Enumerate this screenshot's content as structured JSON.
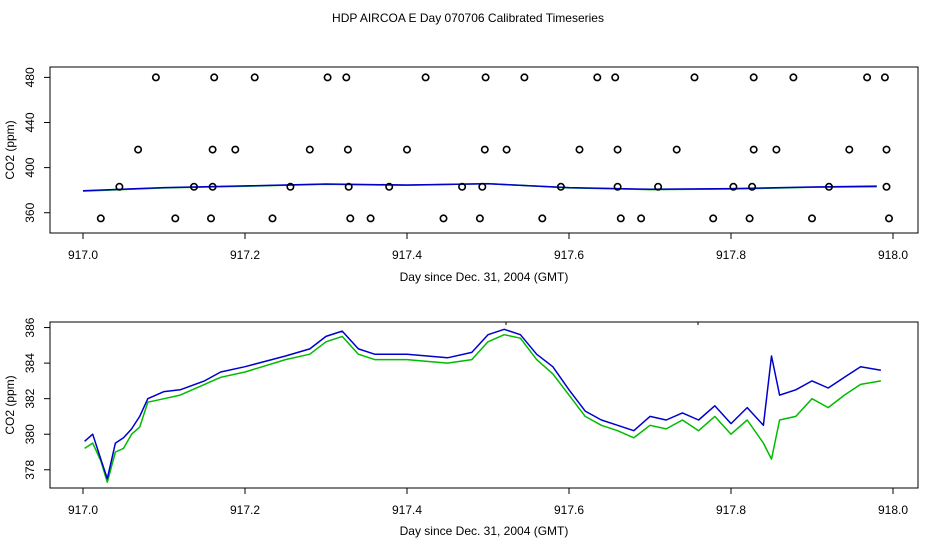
{
  "title": "HDP AIRCOA E  Day 070706  Calibrated Timeseries",
  "colors": {
    "green": "#00bb00",
    "blue": "#0000cc",
    "axis": "#000000",
    "points": "#000000"
  },
  "chart_data": [
    {
      "type": "scatter",
      "name": "top",
      "xlabel": "Day since Dec. 31, 2004 (GMT)",
      "ylabel": "CO2 (ppm)",
      "xlim": [
        917.0,
        918.0
      ],
      "ylim": [
        350,
        483
      ],
      "xticks": [
        917.0,
        917.2,
        917.4,
        917.6,
        917.8,
        918.0
      ],
      "xtick_labels": [
        "917.0",
        "917.2",
        "917.4",
        "917.6",
        "917.8",
        "918.0"
      ],
      "yticks": [
        360,
        400,
        440,
        480
      ],
      "ytick_labels": [
        "360",
        "400",
        "440",
        "480"
      ],
      "points": [
        [
          917.09,
          480
        ],
        [
          917.162,
          480
        ],
        [
          917.212,
          480
        ],
        [
          917.302,
          480
        ],
        [
          917.325,
          480
        ],
        [
          917.423,
          480
        ],
        [
          917.497,
          480
        ],
        [
          917.545,
          480
        ],
        [
          917.635,
          480
        ],
        [
          917.657,
          480
        ],
        [
          917.755,
          480
        ],
        [
          917.828,
          480
        ],
        [
          917.877,
          480
        ],
        [
          917.968,
          480
        ],
        [
          917.99,
          480
        ],
        [
          917.068,
          416
        ],
        [
          917.16,
          416
        ],
        [
          917.188,
          416
        ],
        [
          917.28,
          416
        ],
        [
          917.327,
          416
        ],
        [
          917.4,
          416
        ],
        [
          917.496,
          416
        ],
        [
          917.523,
          416
        ],
        [
          917.613,
          416
        ],
        [
          917.66,
          416
        ],
        [
          917.733,
          416
        ],
        [
          917.828,
          416
        ],
        [
          917.856,
          416
        ],
        [
          917.946,
          416
        ],
        [
          917.992,
          416
        ],
        [
          917.045,
          383
        ],
        [
          917.137,
          383
        ],
        [
          917.16,
          383
        ],
        [
          917.256,
          383
        ],
        [
          917.328,
          383
        ],
        [
          917.378,
          383
        ],
        [
          917.468,
          383
        ],
        [
          917.493,
          383
        ],
        [
          917.59,
          383
        ],
        [
          917.66,
          383
        ],
        [
          917.71,
          383
        ],
        [
          917.803,
          383
        ],
        [
          917.826,
          383
        ],
        [
          917.921,
          383
        ],
        [
          917.992,
          383
        ],
        [
          917.022,
          355
        ],
        [
          917.114,
          355
        ],
        [
          917.158,
          355
        ],
        [
          917.234,
          355
        ],
        [
          917.33,
          355
        ],
        [
          917.355,
          355
        ],
        [
          917.445,
          355
        ],
        [
          917.49,
          355
        ],
        [
          917.567,
          355
        ],
        [
          917.664,
          355
        ],
        [
          917.689,
          355
        ],
        [
          917.778,
          355
        ],
        [
          917.823,
          355
        ],
        [
          917.9,
          355
        ],
        [
          917.995,
          355
        ]
      ],
      "series": [
        {
          "color": "green",
          "x": [
            917.0,
            917.1,
            917.2,
            917.3,
            917.4,
            917.5,
            917.6,
            917.7,
            917.8,
            917.9,
            917.98
          ],
          "y": [
            379.2,
            382.0,
            383.5,
            385.2,
            384.3,
            385.8,
            382.0,
            380.5,
            381.0,
            382.5,
            383.0
          ]
        },
        {
          "color": "blue",
          "x": [
            917.0,
            917.1,
            917.2,
            917.3,
            917.4,
            917.5,
            917.6,
            917.7,
            917.8,
            917.9,
            917.98
          ],
          "y": [
            379.5,
            382.3,
            383.8,
            385.5,
            384.6,
            385.6,
            382.3,
            380.8,
            381.4,
            382.8,
            383.6
          ]
        }
      ]
    },
    {
      "type": "line",
      "name": "bottom",
      "xlabel": "Day since Dec. 31, 2004 (GMT)",
      "ylabel": "CO2 (ppm)",
      "xlim": [
        917.0,
        918.0
      ],
      "ylim": [
        377.2,
        386.2
      ],
      "xticks": [
        917.0,
        917.2,
        917.4,
        917.6,
        917.8,
        918.0
      ],
      "xtick_labels": [
        "917.0",
        "917.2",
        "917.4",
        "917.6",
        "917.8",
        "918.0"
      ],
      "yticks": [
        378,
        380,
        382,
        384,
        386
      ],
      "ytick_labels": [
        "378",
        "380",
        "382",
        "384",
        "386"
      ],
      "series": [
        {
          "color": "green",
          "x": [
            917.002,
            917.012,
            917.022,
            917.03,
            917.04,
            917.05,
            917.06,
            917.07,
            917.08,
            917.1,
            917.12,
            917.15,
            917.17,
            917.2,
            917.25,
            917.28,
            917.3,
            917.32,
            917.34,
            917.36,
            917.4,
            917.45,
            917.48,
            917.5,
            917.52,
            917.54,
            917.56,
            917.58,
            917.6,
            917.62,
            917.64,
            917.66,
            917.68,
            917.7,
            917.72,
            917.74,
            917.76,
            917.78,
            917.8,
            917.82,
            917.84,
            917.85,
            917.86,
            917.88,
            917.9,
            917.92,
            917.94,
            917.96,
            917.985
          ],
          "y": [
            379.2,
            379.5,
            378.5,
            377.3,
            379.0,
            379.2,
            380.0,
            380.4,
            381.8,
            382.0,
            382.2,
            382.8,
            383.2,
            383.5,
            384.2,
            384.5,
            385.2,
            385.5,
            384.5,
            384.2,
            384.2,
            384.0,
            384.2,
            385.2,
            385.6,
            385.4,
            384.2,
            383.4,
            382.2,
            381.0,
            380.5,
            380.2,
            379.8,
            380.5,
            380.3,
            380.8,
            380.2,
            381.0,
            380.0,
            380.8,
            379.5,
            378.6,
            380.8,
            381.0,
            382.0,
            381.5,
            382.2,
            382.8,
            383.0
          ]
        },
        {
          "color": "blue",
          "x": [
            917.002,
            917.012,
            917.022,
            917.03,
            917.04,
            917.05,
            917.06,
            917.07,
            917.08,
            917.1,
            917.12,
            917.15,
            917.17,
            917.2,
            917.25,
            917.28,
            917.3,
            917.32,
            917.34,
            917.36,
            917.4,
            917.45,
            917.48,
            917.5,
            917.52,
            917.54,
            917.56,
            917.58,
            917.6,
            917.62,
            917.64,
            917.66,
            917.68,
            917.7,
            917.72,
            917.74,
            917.76,
            917.78,
            917.8,
            917.82,
            917.84,
            917.85,
            917.86,
            917.88,
            917.9,
            917.92,
            917.94,
            917.96,
            917.985
          ],
          "y": [
            379.6,
            380.0,
            378.6,
            377.5,
            379.5,
            379.8,
            380.3,
            381.0,
            382.0,
            382.4,
            382.5,
            383.0,
            383.5,
            383.8,
            384.4,
            384.8,
            385.5,
            385.8,
            384.8,
            384.5,
            384.5,
            384.3,
            384.6,
            385.6,
            385.9,
            385.6,
            384.5,
            383.8,
            382.5,
            381.3,
            380.8,
            380.5,
            380.2,
            381.0,
            380.8,
            381.2,
            380.8,
            381.6,
            380.6,
            381.5,
            380.5,
            384.4,
            382.2,
            382.5,
            383.0,
            382.6,
            383.2,
            383.8,
            383.6
          ]
        }
      ]
    }
  ]
}
